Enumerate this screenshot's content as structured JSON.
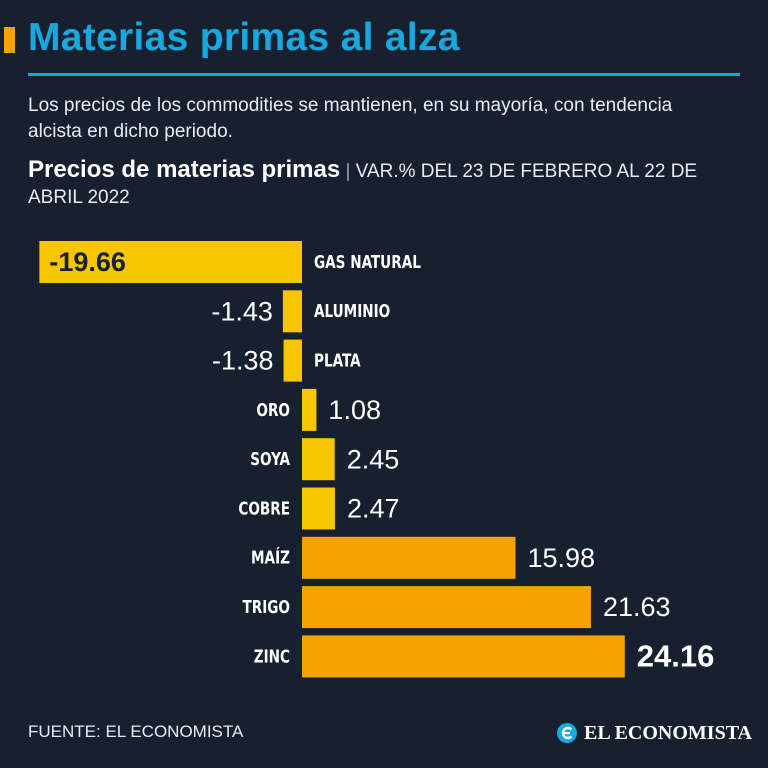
{
  "header": {
    "title": "Materias primas al alza",
    "subtitle": "Los precios de los commodities se mantienen, en su mayoría, con tendencia alcista en dicho periodo.",
    "chart_title": "Precios de materias primas",
    "separator": "|",
    "chart_subtitle": "VAR.% DEL 23 DE FEBRERO AL 22 DE ABRIL 2022"
  },
  "colors": {
    "background": "#16202f",
    "title": "#18a8e0",
    "accent": "#f5a300",
    "bar_light": "#f7c600",
    "bar_dark": "#f5a300"
  },
  "chart_data": {
    "type": "bar",
    "orientation": "horizontal",
    "title": "Precios de materias primas",
    "subtitle": "VAR.% DEL 23 DE FEBRERO AL 22 DE ABRIL 2022",
    "unit": "%",
    "categories": [
      "GAS NATURAL",
      "ALUMINIO",
      "PLATA",
      "ORO",
      "SOYA",
      "COBRE",
      "MAÍZ",
      "TRIGO",
      "ZINC"
    ],
    "values": [
      -19.66,
      -1.43,
      -1.38,
      1.08,
      2.45,
      2.47,
      15.98,
      21.63,
      24.16
    ],
    "value_labels": [
      "-19.66",
      "-1.43",
      "-1.38",
      "1.08",
      "2.45",
      "2.47",
      "15.98",
      "21.63",
      "24.16"
    ],
    "highlight": "ZINC",
    "xlim": [
      -19.66,
      24.16
    ]
  },
  "footer": {
    "source": "FUENTE: EL ECONOMISTA",
    "brand": "EL ECONOMISTA",
    "brand_logo_icon": "el-economista-logo-icon"
  }
}
